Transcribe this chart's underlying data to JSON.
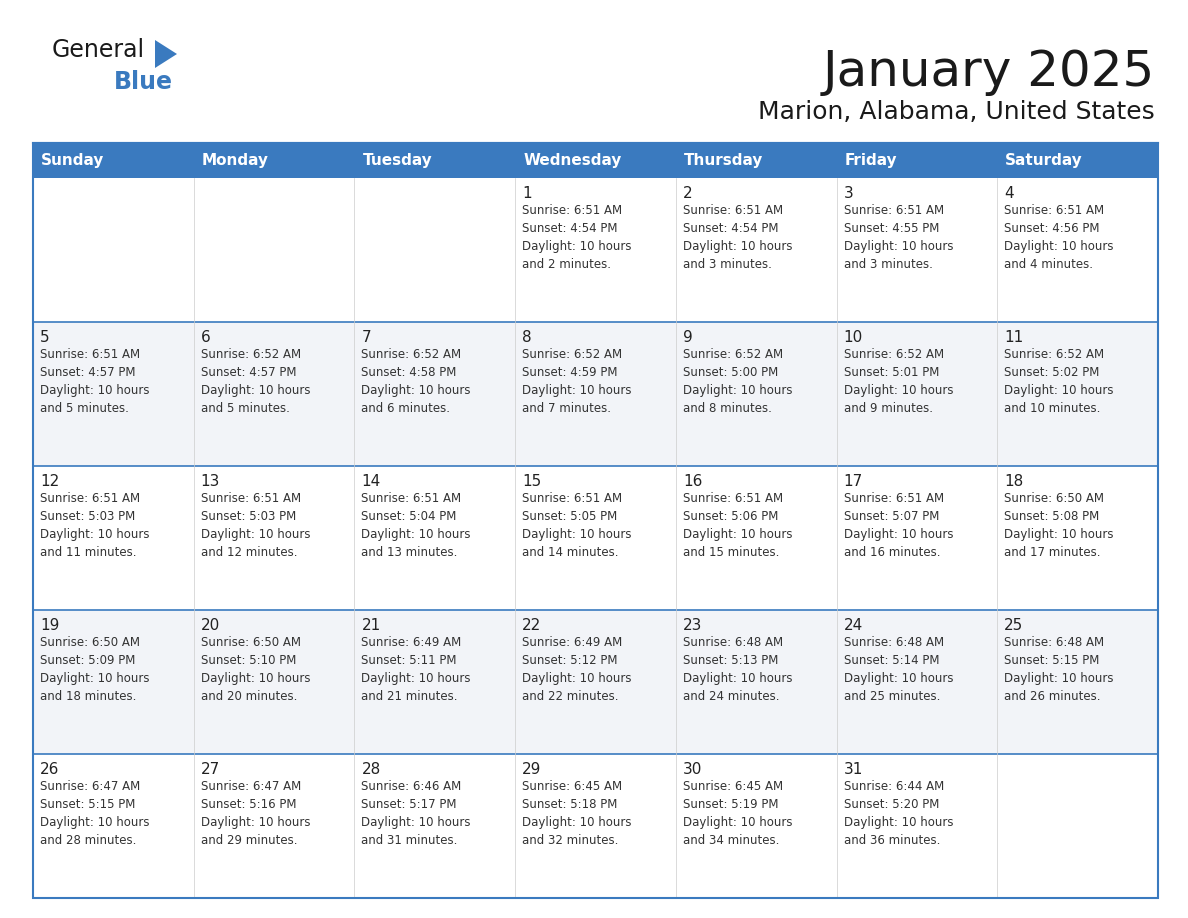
{
  "title": "January 2025",
  "subtitle": "Marion, Alabama, United States",
  "header_color": "#3a7abf",
  "header_text_color": "#FFFFFF",
  "days_of_week": [
    "Sunday",
    "Monday",
    "Tuesday",
    "Wednesday",
    "Thursday",
    "Friday",
    "Saturday"
  ],
  "background_color": "#FFFFFF",
  "cell_bg": "#FFFFFF",
  "cell_bg_alt": "#F5F5F5",
  "grid_line_color": "#3a7abf",
  "separator_color": "#3a7abf",
  "text_color": "#333333",
  "logo_general_color": "#1a1a1a",
  "logo_blue_color": "#3a7abf",
  "logo_triangle_color": "#3a7abf",
  "weeks": [
    [
      {
        "day": "",
        "info": ""
      },
      {
        "day": "",
        "info": ""
      },
      {
        "day": "",
        "info": ""
      },
      {
        "day": "1",
        "info": "Sunrise: 6:51 AM\nSunset: 4:54 PM\nDaylight: 10 hours\nand 2 minutes."
      },
      {
        "day": "2",
        "info": "Sunrise: 6:51 AM\nSunset: 4:54 PM\nDaylight: 10 hours\nand 3 minutes."
      },
      {
        "day": "3",
        "info": "Sunrise: 6:51 AM\nSunset: 4:55 PM\nDaylight: 10 hours\nand 3 minutes."
      },
      {
        "day": "4",
        "info": "Sunrise: 6:51 AM\nSunset: 4:56 PM\nDaylight: 10 hours\nand 4 minutes."
      }
    ],
    [
      {
        "day": "5",
        "info": "Sunrise: 6:51 AM\nSunset: 4:57 PM\nDaylight: 10 hours\nand 5 minutes."
      },
      {
        "day": "6",
        "info": "Sunrise: 6:52 AM\nSunset: 4:57 PM\nDaylight: 10 hours\nand 5 minutes."
      },
      {
        "day": "7",
        "info": "Sunrise: 6:52 AM\nSunset: 4:58 PM\nDaylight: 10 hours\nand 6 minutes."
      },
      {
        "day": "8",
        "info": "Sunrise: 6:52 AM\nSunset: 4:59 PM\nDaylight: 10 hours\nand 7 minutes."
      },
      {
        "day": "9",
        "info": "Sunrise: 6:52 AM\nSunset: 5:00 PM\nDaylight: 10 hours\nand 8 minutes."
      },
      {
        "day": "10",
        "info": "Sunrise: 6:52 AM\nSunset: 5:01 PM\nDaylight: 10 hours\nand 9 minutes."
      },
      {
        "day": "11",
        "info": "Sunrise: 6:52 AM\nSunset: 5:02 PM\nDaylight: 10 hours\nand 10 minutes."
      }
    ],
    [
      {
        "day": "12",
        "info": "Sunrise: 6:51 AM\nSunset: 5:03 PM\nDaylight: 10 hours\nand 11 minutes."
      },
      {
        "day": "13",
        "info": "Sunrise: 6:51 AM\nSunset: 5:03 PM\nDaylight: 10 hours\nand 12 minutes."
      },
      {
        "day": "14",
        "info": "Sunrise: 6:51 AM\nSunset: 5:04 PM\nDaylight: 10 hours\nand 13 minutes."
      },
      {
        "day": "15",
        "info": "Sunrise: 6:51 AM\nSunset: 5:05 PM\nDaylight: 10 hours\nand 14 minutes."
      },
      {
        "day": "16",
        "info": "Sunrise: 6:51 AM\nSunset: 5:06 PM\nDaylight: 10 hours\nand 15 minutes."
      },
      {
        "day": "17",
        "info": "Sunrise: 6:51 AM\nSunset: 5:07 PM\nDaylight: 10 hours\nand 16 minutes."
      },
      {
        "day": "18",
        "info": "Sunrise: 6:50 AM\nSunset: 5:08 PM\nDaylight: 10 hours\nand 17 minutes."
      }
    ],
    [
      {
        "day": "19",
        "info": "Sunrise: 6:50 AM\nSunset: 5:09 PM\nDaylight: 10 hours\nand 18 minutes."
      },
      {
        "day": "20",
        "info": "Sunrise: 6:50 AM\nSunset: 5:10 PM\nDaylight: 10 hours\nand 20 minutes."
      },
      {
        "day": "21",
        "info": "Sunrise: 6:49 AM\nSunset: 5:11 PM\nDaylight: 10 hours\nand 21 minutes."
      },
      {
        "day": "22",
        "info": "Sunrise: 6:49 AM\nSunset: 5:12 PM\nDaylight: 10 hours\nand 22 minutes."
      },
      {
        "day": "23",
        "info": "Sunrise: 6:48 AM\nSunset: 5:13 PM\nDaylight: 10 hours\nand 24 minutes."
      },
      {
        "day": "24",
        "info": "Sunrise: 6:48 AM\nSunset: 5:14 PM\nDaylight: 10 hours\nand 25 minutes."
      },
      {
        "day": "25",
        "info": "Sunrise: 6:48 AM\nSunset: 5:15 PM\nDaylight: 10 hours\nand 26 minutes."
      }
    ],
    [
      {
        "day": "26",
        "info": "Sunrise: 6:47 AM\nSunset: 5:15 PM\nDaylight: 10 hours\nand 28 minutes."
      },
      {
        "day": "27",
        "info": "Sunrise: 6:47 AM\nSunset: 5:16 PM\nDaylight: 10 hours\nand 29 minutes."
      },
      {
        "day": "28",
        "info": "Sunrise: 6:46 AM\nSunset: 5:17 PM\nDaylight: 10 hours\nand 31 minutes."
      },
      {
        "day": "29",
        "info": "Sunrise: 6:45 AM\nSunset: 5:18 PM\nDaylight: 10 hours\nand 32 minutes."
      },
      {
        "day": "30",
        "info": "Sunrise: 6:45 AM\nSunset: 5:19 PM\nDaylight: 10 hours\nand 34 minutes."
      },
      {
        "day": "31",
        "info": "Sunrise: 6:44 AM\nSunset: 5:20 PM\nDaylight: 10 hours\nand 36 minutes."
      },
      {
        "day": "",
        "info": ""
      }
    ]
  ]
}
